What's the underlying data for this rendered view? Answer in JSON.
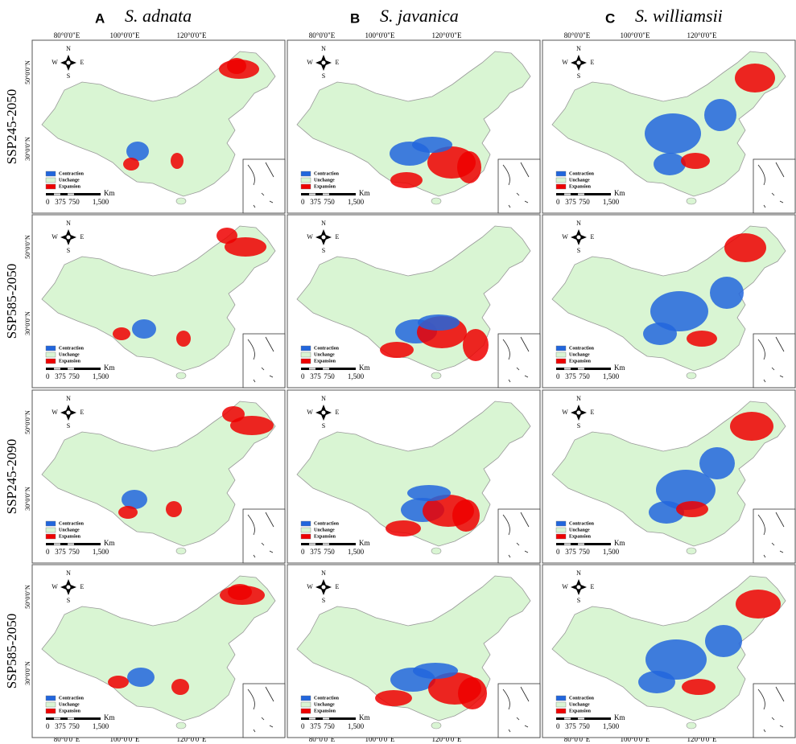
{
  "columns": [
    {
      "letter": "A",
      "species": "S. adnata"
    },
    {
      "letter": "B",
      "species": "S. javanica"
    },
    {
      "letter": "C",
      "species": "S. williamsii"
    }
  ],
  "rows": [
    "SSP245-2050",
    "SSP585-2050",
    "SSP245-2090",
    "SSP585-2050"
  ],
  "longitude_labels": [
    "80°0'0\"E",
    "100°0'0\"E",
    "120°0'0\"E"
  ],
  "latitude_labels": [
    "50°0'0\"N",
    "30°0'0\"N"
  ],
  "legend": [
    "Contraction",
    "Unchange",
    "Expansion"
  ],
  "compass": {
    "n": "N",
    "s": "S",
    "w": "W",
    "e": "E"
  },
  "scale_bar": {
    "unit": "Km",
    "ticks": [
      "0",
      "375",
      "750",
      "1,500"
    ]
  }
}
